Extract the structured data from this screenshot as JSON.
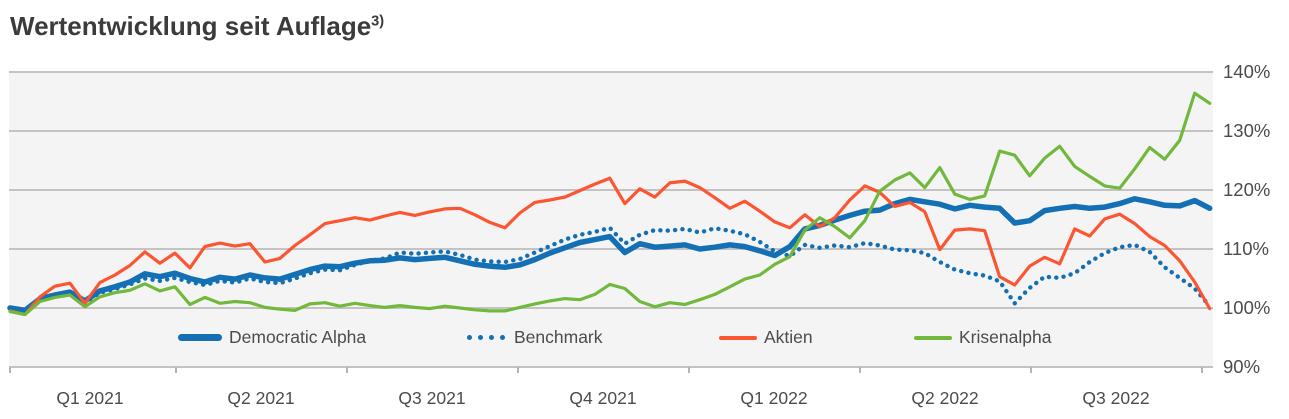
{
  "page": {
    "title": "Wertentwicklung seit Auflage",
    "title_sup": "3)",
    "title_color": "#3b3b3b",
    "axis_text_color": "#4c4c4c"
  },
  "chart_data": {
    "type": "line",
    "title": "Wertentwicklung seit Auflage 3)",
    "plot_bg": "#f4f4f4",
    "grid_color": "#c3c3c3",
    "tick_color": "#b5b5b5",
    "legend_position": "bottom-inside",
    "y_axis": {
      "unit": "%",
      "range": [
        90,
        140
      ],
      "ticks": [
        90,
        100,
        110,
        120,
        130,
        140
      ],
      "tick_labels": [
        "90%",
        "100%",
        "110%",
        "120%",
        "130%",
        "140%"
      ]
    },
    "x_axis": {
      "unit": "quarters",
      "tick_labels": [
        "Q1 2021",
        "Q2 2021",
        "Q3 2021",
        "Q4 2021",
        "Q1 2022",
        "Q2 2022",
        "Q3 2022"
      ],
      "quarter_boundaries": [
        0,
        1,
        2,
        3,
        4,
        5,
        6,
        7
      ]
    },
    "sampling": {
      "t0": 0.029,
      "dt": 0.0877,
      "unit": "quarters_since_start"
    },
    "series": [
      {
        "name": "Democratic Alpha",
        "color": "#1470b4",
        "style": "solid",
        "stroke_width": 5.5,
        "z": 1,
        "values": [
          100.0,
          99.6,
          101.6,
          102.2,
          102.7,
          101.2,
          102.9,
          103.6,
          104.4,
          105.8,
          105.3,
          105.9,
          105.0,
          104.4,
          105.2,
          104.9,
          105.6,
          105.1,
          104.9,
          105.7,
          106.5,
          107.1,
          107.0,
          107.6,
          108.0,
          108.1,
          108.5,
          108.2,
          108.4,
          108.6,
          108.0,
          107.4,
          107.1,
          106.9,
          107.3,
          108.2,
          109.3,
          110.2,
          111.1,
          111.6,
          112.1,
          109.4,
          110.9,
          110.3,
          110.5,
          110.7,
          110.0,
          110.3,
          110.7,
          110.4,
          109.7,
          108.9,
          110.4,
          113.4,
          114.0,
          114.9,
          115.7,
          116.4,
          116.6,
          117.7,
          118.4,
          118.0,
          117.6,
          116.8,
          117.4,
          117.1,
          116.9,
          114.4,
          114.8,
          116.5,
          116.9,
          117.2,
          116.9,
          117.1,
          117.7,
          118.5,
          118.0,
          117.4,
          117.3,
          118.2,
          116.9
        ]
      },
      {
        "name": "Benchmark",
        "color": "#1470b4",
        "style": "dotted",
        "stroke_width": 4.4,
        "z": 0,
        "values": [
          100.0,
          99.4,
          101.4,
          101.9,
          102.4,
          100.9,
          102.6,
          103.2,
          104.0,
          105.0,
          104.6,
          105.1,
          104.4,
          103.9,
          104.6,
          104.3,
          105.0,
          104.4,
          104.2,
          105.0,
          105.9,
          106.5,
          106.4,
          107.3,
          108.0,
          108.4,
          109.4,
          109.2,
          109.4,
          109.6,
          109.0,
          108.2,
          107.9,
          107.8,
          108.3,
          109.4,
          110.5,
          111.6,
          112.4,
          112.9,
          113.6,
          110.9,
          112.4,
          113.2,
          113.1,
          113.4,
          112.8,
          113.5,
          113.1,
          112.5,
          111.2,
          109.6,
          108.8,
          110.7,
          110.2,
          110.6,
          110.3,
          111.0,
          110.6,
          109.9,
          109.8,
          109.3,
          107.8,
          106.5,
          105.9,
          105.5,
          104.5,
          100.8,
          103.4,
          105.3,
          105.1,
          105.9,
          107.8,
          109.3,
          110.3,
          110.7,
          109.5,
          106.9,
          105.1,
          103.3,
          100.3
        ]
      },
      {
        "name": "Aktien",
        "color": "#fb5531",
        "style": "solid",
        "stroke_width": 3.2,
        "z": 2,
        "values": [
          99.5,
          98.9,
          101.9,
          103.7,
          104.2,
          100.8,
          104.3,
          105.6,
          107.2,
          109.5,
          107.6,
          109.3,
          106.8,
          110.4,
          111.0,
          110.5,
          110.9,
          107.8,
          108.4,
          110.6,
          112.4,
          114.3,
          114.8,
          115.3,
          114.9,
          115.6,
          116.2,
          115.7,
          116.3,
          116.8,
          116.9,
          115.8,
          114.5,
          113.6,
          116.1,
          117.9,
          118.3,
          118.8,
          119.9,
          121.0,
          122.0,
          117.7,
          120.2,
          118.8,
          121.2,
          121.5,
          120.4,
          118.7,
          116.9,
          118.1,
          116.4,
          114.6,
          113.6,
          115.8,
          113.8,
          115.3,
          118.3,
          120.7,
          119.6,
          117.2,
          117.9,
          116.3,
          109.9,
          113.2,
          113.4,
          113.1,
          105.3,
          103.9,
          107.1,
          108.6,
          107.5,
          113.4,
          112.2,
          115.1,
          115.9,
          114.3,
          112.1,
          110.6,
          108.0,
          104.4,
          99.9
        ]
      },
      {
        "name": "Krisenalpha",
        "color": "#71b83c",
        "style": "solid",
        "stroke_width": 3.2,
        "z": 3,
        "values": [
          99.4,
          98.9,
          101.1,
          101.8,
          102.2,
          100.2,
          101.9,
          102.6,
          103.0,
          104.1,
          102.9,
          103.6,
          100.6,
          101.8,
          100.8,
          101.1,
          100.9,
          100.1,
          99.8,
          99.6,
          100.7,
          100.9,
          100.3,
          100.8,
          100.4,
          100.1,
          100.4,
          100.1,
          99.9,
          100.3,
          100.0,
          99.7,
          99.5,
          99.5,
          100.1,
          100.7,
          101.2,
          101.6,
          101.4,
          102.3,
          104.0,
          103.3,
          101.1,
          100.2,
          100.9,
          100.6,
          101.4,
          102.3,
          103.6,
          104.9,
          105.6,
          107.4,
          108.7,
          113.2,
          115.3,
          113.8,
          111.9,
          114.8,
          119.8,
          121.7,
          122.9,
          120.4,
          123.8,
          119.3,
          118.4,
          119.0,
          126.6,
          125.9,
          122.4,
          125.4,
          127.4,
          124.0,
          122.3,
          120.7,
          120.3,
          123.6,
          127.2,
          125.2,
          128.4,
          136.4,
          134.7
        ]
      }
    ]
  }
}
